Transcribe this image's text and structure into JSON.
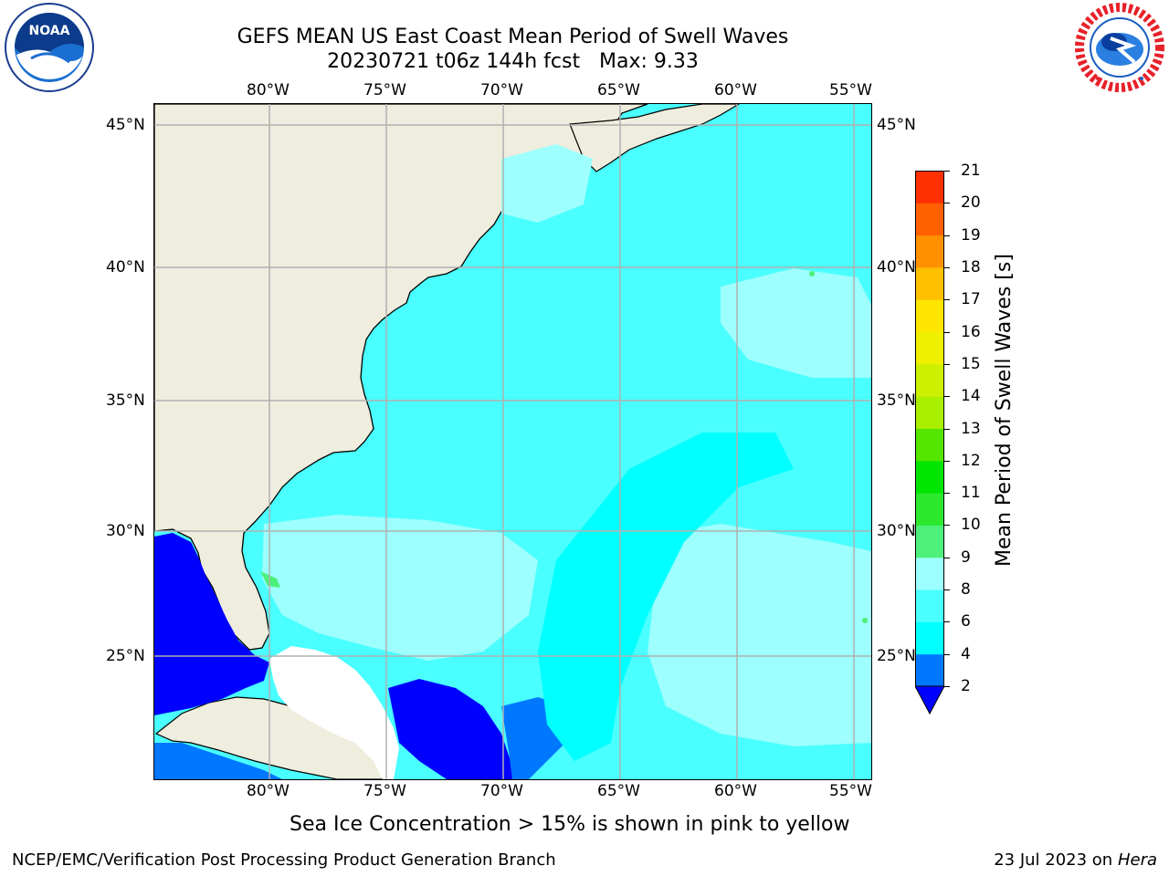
{
  "header": {
    "title_line1": "GEFS MEAN US East Coast Mean Period of Swell Waves",
    "title_line2": "20230721 t06z 144h fcst   Max: 9.33"
  },
  "logos": {
    "left": {
      "text": "NOAA",
      "ring_text": "NATIONAL OCEANIC AND ATMOSPHERIC ADMINISTRATION · U.S. DEPARTMENT OF COMMERCE",
      "icon": "noaa-logo-icon"
    },
    "right": {
      "ring_text": "NATIONAL WEATHER SERVICE",
      "icon": "nws-logo-icon"
    }
  },
  "map": {
    "lon_labels": [
      "80°W",
      "75°W",
      "70°W",
      "65°W",
      "60°W",
      "55°W"
    ],
    "lat_labels": [
      "45°N",
      "40°N",
      "35°N",
      "30°N",
      "25°N"
    ],
    "colors": {
      "land": "#efedde",
      "ocean_main": "#49ffff",
      "ocean_light": "#9dfffe",
      "ocean_deep": "#00ffff",
      "blue_mid": "#0077ff",
      "blue_dark": "#0000ff",
      "green": "#4df07a",
      "coast": "#000000",
      "grid": "#b0b0b0"
    }
  },
  "colorbar": {
    "label": "Mean Period of Swell Waves [s]",
    "ticks": [
      "2",
      "4",
      "6",
      "8",
      "9",
      "10",
      "11",
      "12",
      "13",
      "14",
      "15",
      "16",
      "17",
      "18",
      "19",
      "20",
      "21"
    ],
    "colors": [
      "#0000ff",
      "#0077ff",
      "#00ffff",
      "#49ffff",
      "#9dfffe",
      "#4df07a",
      "#2de82d",
      "#00e600",
      "#55e600",
      "#aaee00",
      "#ccf000",
      "#eef000",
      "#ffe600",
      "#ffc000",
      "#ff9000",
      "#ff6000",
      "#ff3000",
      "#ff0000"
    ]
  },
  "note": "Sea Ice Concentration > 15% is shown in pink to yellow",
  "footer": {
    "left": "NCEP/EMC/Verification Post Processing Product Generation Branch",
    "right_date": "23 Jul 2023 on ",
    "right_machine": "Hera"
  }
}
